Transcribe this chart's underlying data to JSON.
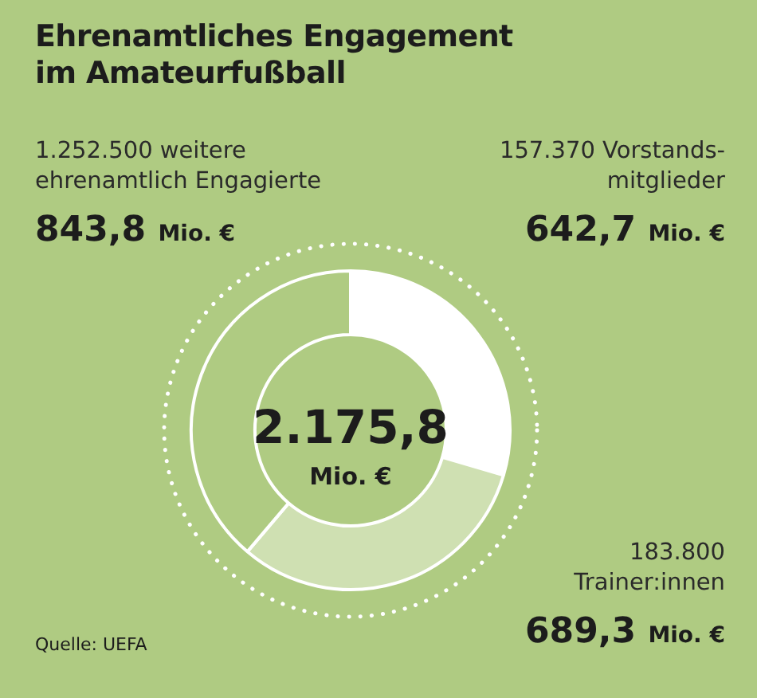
{
  "chart_data": {
    "type": "donut",
    "title": "Ehrenamtliches Engagement\nim Amateurfußball",
    "categories": [
      "157.370 Vorstands-\nmitglieder",
      "183.800\nTrainer:innen",
      "1.252.500 weitere\nehrenamtlich Engagierte"
    ],
    "values": [
      642.7,
      689.3,
      843.8
    ],
    "colors": [
      "#ffffff",
      "#cfe0b2",
      "#afcb82"
    ],
    "value_labels": [
      "642,7 Mio. €",
      "689,3 Mio. €",
      "843,8 Mio. €"
    ],
    "annotations": [
      "2.175,8",
      "Mio. €",
      "Quelle: UEFA"
    ],
    "legend": false
  }
}
